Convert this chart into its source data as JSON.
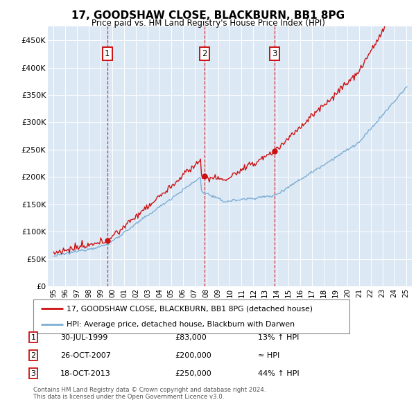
{
  "title": "17, GOODSHAW CLOSE, BLACKBURN, BB1 8PG",
  "subtitle": "Price paid vs. HM Land Registry's House Price Index (HPI)",
  "ylim": [
    0,
    475000
  ],
  "yticks": [
    0,
    50000,
    100000,
    150000,
    200000,
    250000,
    300000,
    350000,
    400000,
    450000
  ],
  "ytick_labels": [
    "£0",
    "£50K",
    "£100K",
    "£150K",
    "£200K",
    "£250K",
    "£300K",
    "£350K",
    "£400K",
    "£450K"
  ],
  "hpi_color": "#7bafd4",
  "price_color": "#cc1111",
  "background_color": "#dde8f5",
  "transactions": [
    {
      "num": 1,
      "date": "30-JUL-1999",
      "price": 83000,
      "note": "13% ↑ HPI",
      "year": 1999.57
    },
    {
      "num": 2,
      "date": "26-OCT-2007",
      "price": 200000,
      "note": "≈ HPI",
      "year": 2007.82
    },
    {
      "num": 3,
      "date": "18-OCT-2013",
      "price": 250000,
      "note": "44% ↑ HPI",
      "year": 2013.8
    }
  ],
  "legend_line1": "17, GOODSHAW CLOSE, BLACKBURN, BB1 8PG (detached house)",
  "legend_line2": "HPI: Average price, detached house, Blackburn with Darwen",
  "footer1": "Contains HM Land Registry data © Crown copyright and database right 2024.",
  "footer2": "This data is licensed under the Open Government Licence v3.0.",
  "xlim": [
    1994.5,
    2025.5
  ],
  "xticks": [
    1995,
    1996,
    1997,
    1998,
    1999,
    2000,
    2001,
    2002,
    2003,
    2004,
    2005,
    2006,
    2007,
    2008,
    2009,
    2010,
    2011,
    2012,
    2013,
    2014,
    2015,
    2016,
    2017,
    2018,
    2019,
    2020,
    2021,
    2022,
    2023,
    2024,
    2025
  ]
}
